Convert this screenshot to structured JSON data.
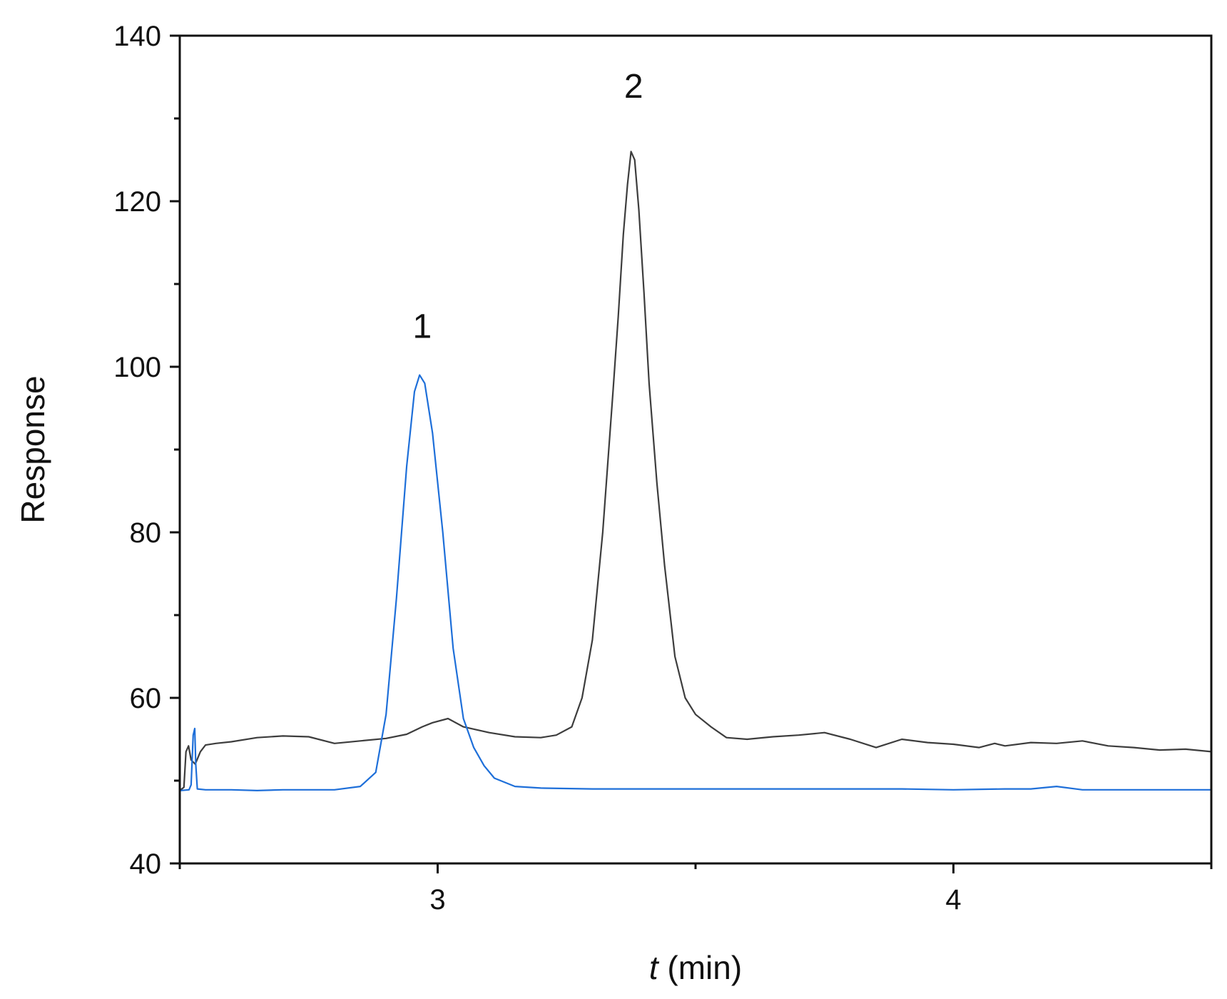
{
  "chart_data": {
    "type": "line",
    "xlabel_italic": "t",
    "xlabel_rest": " (min)",
    "ylabel": "Response",
    "xlim": [
      2.5,
      4.5
    ],
    "ylim": [
      40,
      140
    ],
    "x_ticks": [
      3,
      4
    ],
    "x_minor_ticks": [
      2.5,
      3.5,
      4.5
    ],
    "y_ticks": [
      40,
      60,
      80,
      100,
      120,
      140
    ],
    "y_minor_ticks": [
      50,
      70,
      90,
      110,
      130
    ],
    "grid": false,
    "annotations": [
      {
        "text": "1",
        "x": 2.97,
        "y": 103.5
      },
      {
        "text": "2",
        "x": 3.38,
        "y": 132.5
      }
    ],
    "series": [
      {
        "color": "#3d3d3d",
        "points": [
          [
            2.5,
            48.8
          ],
          [
            2.508,
            49.2
          ],
          [
            2.512,
            53.5
          ],
          [
            2.517,
            54.2
          ],
          [
            2.522,
            52.5
          ],
          [
            2.53,
            52.0
          ],
          [
            2.54,
            53.5
          ],
          [
            2.55,
            54.3
          ],
          [
            2.57,
            54.5
          ],
          [
            2.6,
            54.7
          ],
          [
            2.65,
            55.2
          ],
          [
            2.7,
            55.4
          ],
          [
            2.75,
            55.3
          ],
          [
            2.8,
            54.5
          ],
          [
            2.85,
            54.8
          ],
          [
            2.9,
            55.1
          ],
          [
            2.94,
            55.6
          ],
          [
            2.97,
            56.5
          ],
          [
            2.99,
            57.0
          ],
          [
            3.02,
            57.5
          ],
          [
            3.05,
            56.5
          ],
          [
            3.1,
            55.8
          ],
          [
            3.15,
            55.3
          ],
          [
            3.2,
            55.2
          ],
          [
            3.23,
            55.5
          ],
          [
            3.26,
            56.5
          ],
          [
            3.28,
            60.0
          ],
          [
            3.3,
            67.0
          ],
          [
            3.32,
            80.0
          ],
          [
            3.34,
            97.0
          ],
          [
            3.35,
            106.0
          ],
          [
            3.36,
            116.0
          ],
          [
            3.368,
            122.0
          ],
          [
            3.375,
            126.0
          ],
          [
            3.382,
            125.0
          ],
          [
            3.39,
            119.0
          ],
          [
            3.4,
            109.0
          ],
          [
            3.41,
            98.0
          ],
          [
            3.425,
            86.0
          ],
          [
            3.44,
            76.0
          ],
          [
            3.46,
            65.0
          ],
          [
            3.48,
            60.0
          ],
          [
            3.5,
            58.0
          ],
          [
            3.53,
            56.5
          ],
          [
            3.56,
            55.2
          ],
          [
            3.6,
            55.0
          ],
          [
            3.65,
            55.3
          ],
          [
            3.7,
            55.5
          ],
          [
            3.75,
            55.8
          ],
          [
            3.8,
            55.0
          ],
          [
            3.85,
            54.0
          ],
          [
            3.9,
            55.0
          ],
          [
            3.95,
            54.6
          ],
          [
            4.0,
            54.4
          ],
          [
            4.05,
            54.0
          ],
          [
            4.08,
            54.5
          ],
          [
            4.1,
            54.2
          ],
          [
            4.15,
            54.6
          ],
          [
            4.2,
            54.5
          ],
          [
            4.25,
            54.8
          ],
          [
            4.3,
            54.2
          ],
          [
            4.35,
            54.0
          ],
          [
            4.4,
            53.7
          ],
          [
            4.45,
            53.8
          ],
          [
            4.5,
            53.5
          ]
        ]
      },
      {
        "color": "#1e6fd9",
        "points": [
          [
            2.5,
            48.8
          ],
          [
            2.518,
            48.9
          ],
          [
            2.522,
            49.5
          ],
          [
            2.526,
            55.5
          ],
          [
            2.529,
            56.3
          ],
          [
            2.531,
            52.0
          ],
          [
            2.534,
            49.0
          ],
          [
            2.55,
            48.9
          ],
          [
            2.6,
            48.9
          ],
          [
            2.65,
            48.8
          ],
          [
            2.7,
            48.9
          ],
          [
            2.75,
            48.9
          ],
          [
            2.8,
            48.9
          ],
          [
            2.85,
            49.3
          ],
          [
            2.88,
            51.0
          ],
          [
            2.9,
            58.0
          ],
          [
            2.92,
            72.0
          ],
          [
            2.94,
            88.0
          ],
          [
            2.955,
            97.0
          ],
          [
            2.965,
            99.0
          ],
          [
            2.975,
            98.0
          ],
          [
            2.99,
            92.0
          ],
          [
            3.01,
            80.0
          ],
          [
            3.03,
            66.0
          ],
          [
            3.05,
            57.5
          ],
          [
            3.07,
            54.0
          ],
          [
            3.09,
            51.8
          ],
          [
            3.11,
            50.3
          ],
          [
            3.15,
            49.3
          ],
          [
            3.2,
            49.1
          ],
          [
            3.3,
            49.0
          ],
          [
            3.4,
            49.0
          ],
          [
            3.5,
            49.0
          ],
          [
            3.6,
            49.0
          ],
          [
            3.7,
            49.0
          ],
          [
            3.8,
            49.0
          ],
          [
            3.9,
            49.0
          ],
          [
            4.0,
            48.9
          ],
          [
            4.1,
            49.0
          ],
          [
            4.15,
            49.0
          ],
          [
            4.2,
            49.3
          ],
          [
            4.25,
            48.9
          ],
          [
            4.3,
            48.9
          ],
          [
            4.35,
            48.9
          ],
          [
            4.4,
            48.9
          ],
          [
            4.5,
            48.9
          ]
        ]
      }
    ]
  }
}
